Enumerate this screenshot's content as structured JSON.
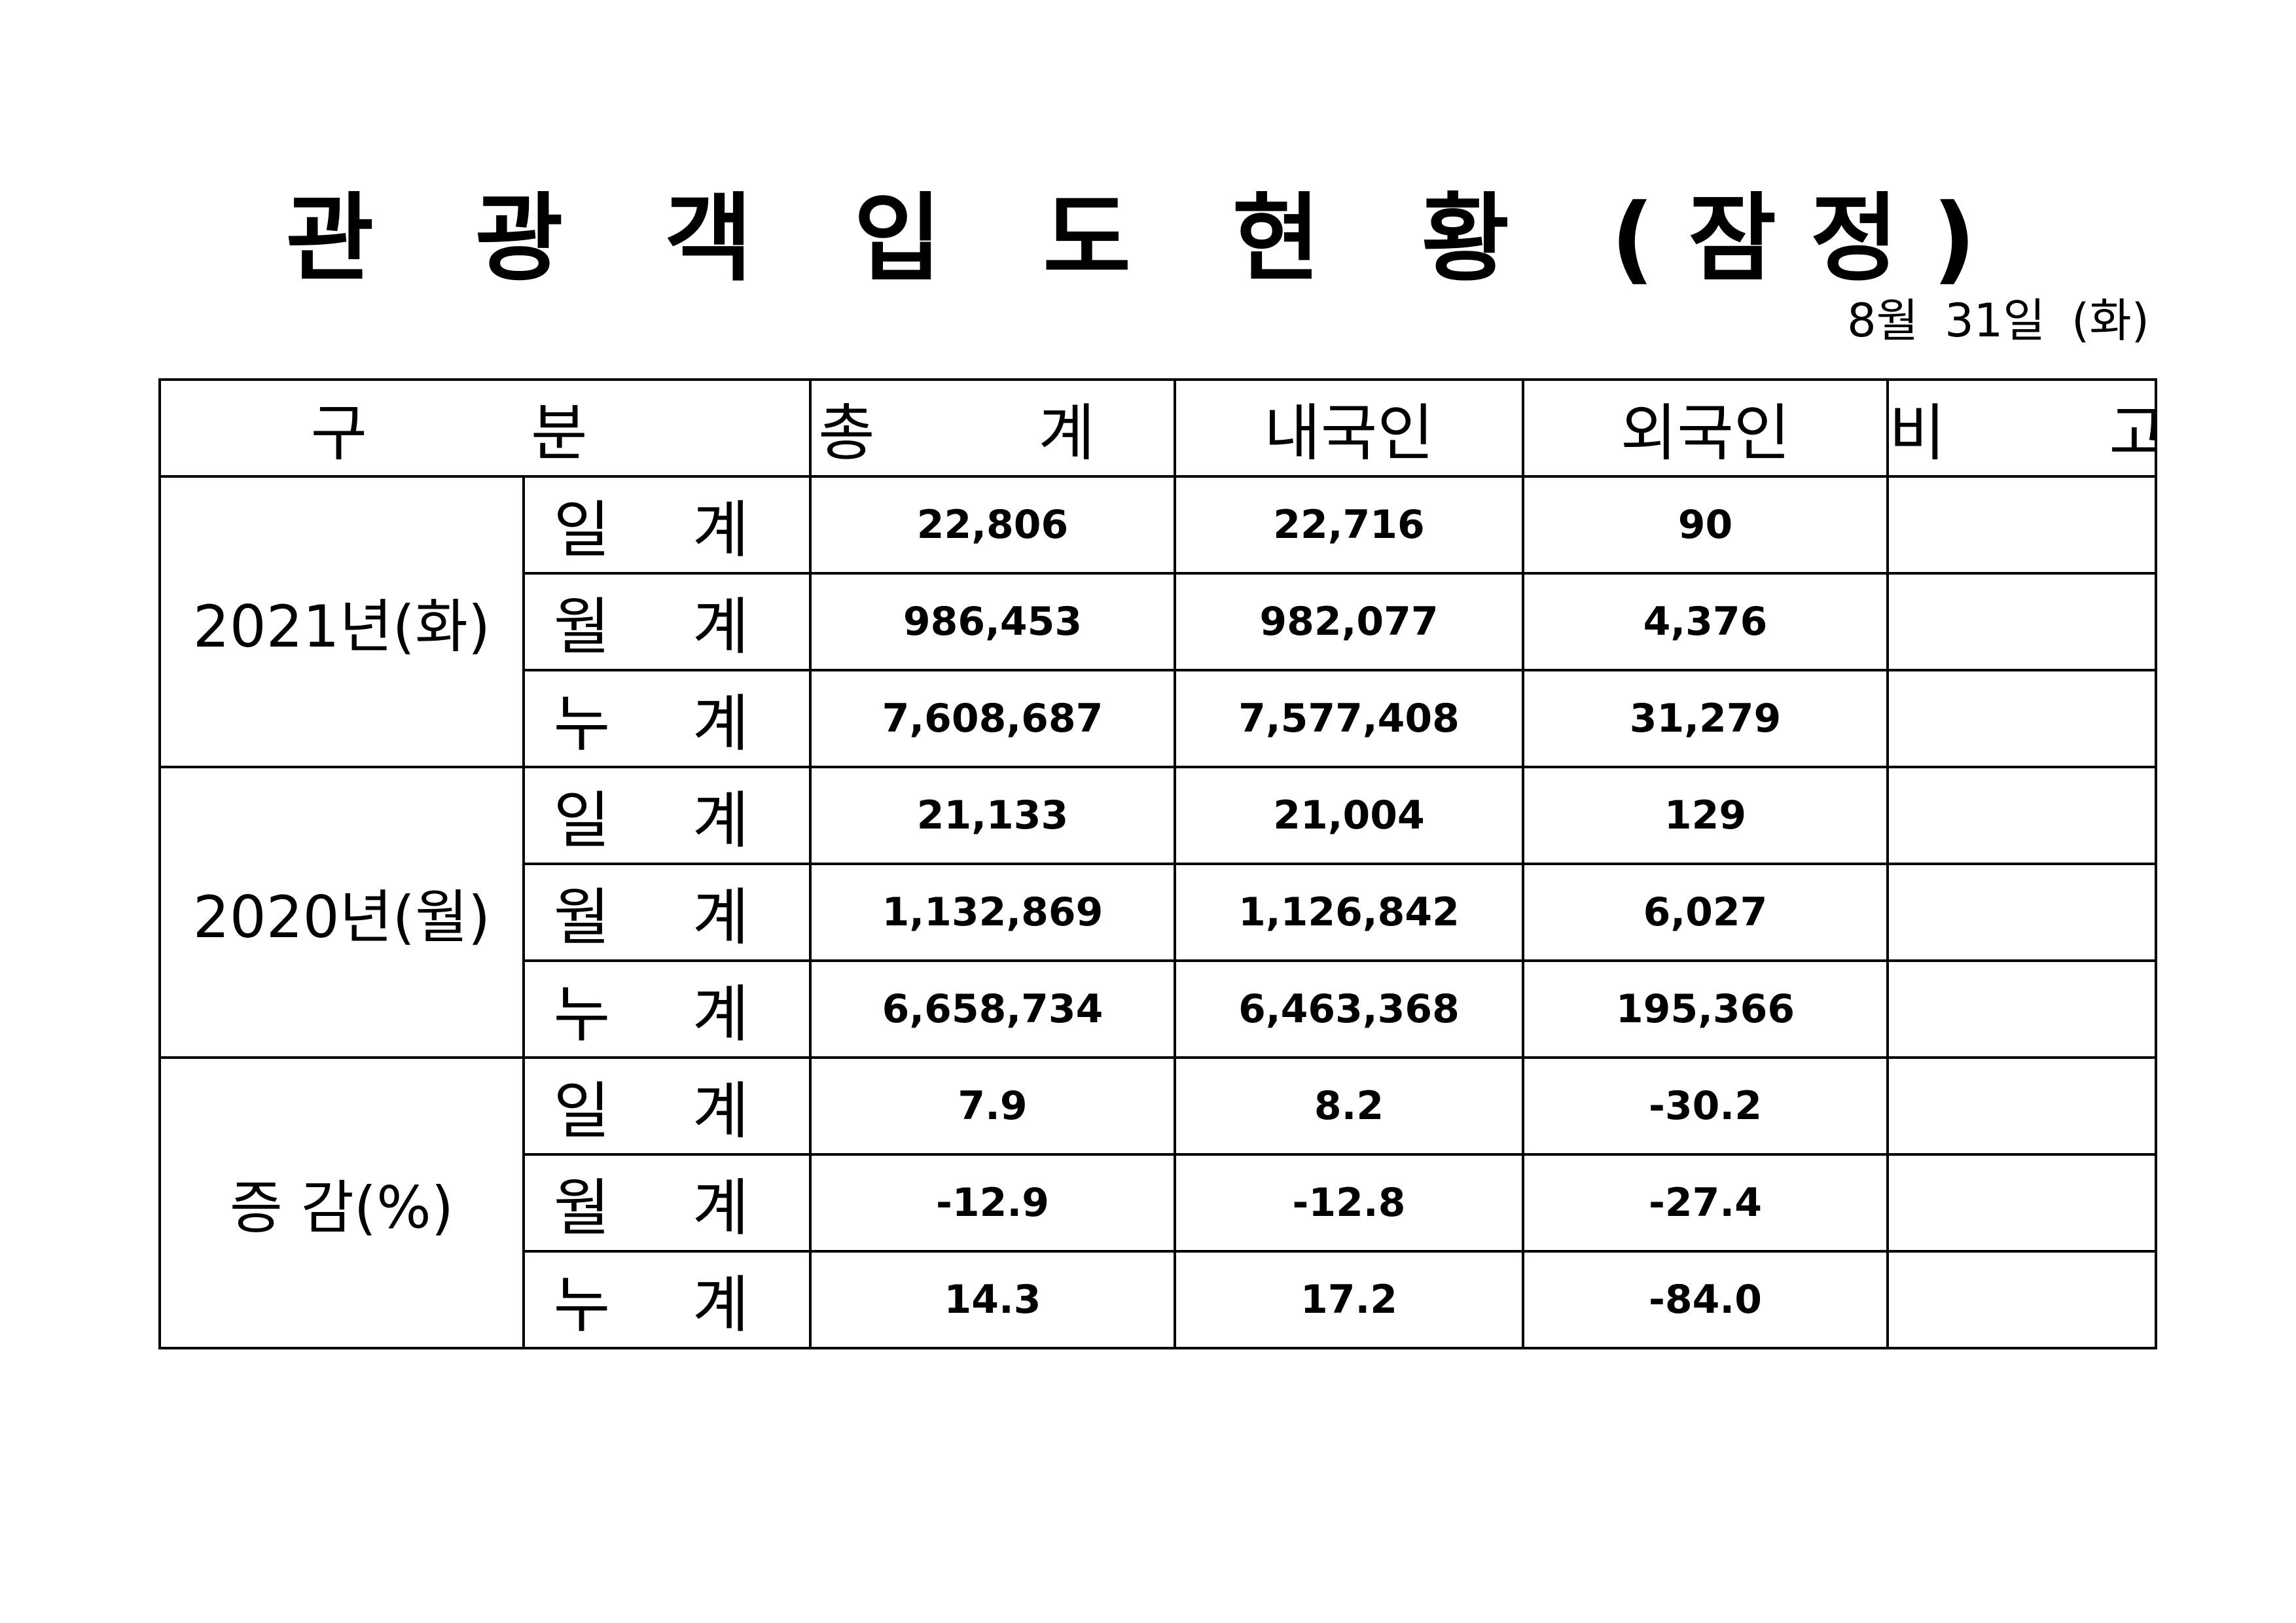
{
  "title": "관 광 객 입 도 현 황 (잠정)",
  "date": "8월 31일 (화)",
  "table": {
    "headers": {
      "category": "구 분",
      "total": "총 계",
      "domestic": "내국인",
      "foreign": "외국인",
      "remarks": "비 고"
    },
    "groups": [
      {
        "label": "2021년(화)",
        "rows": [
          {
            "label": "일 계",
            "total": "22,806",
            "domestic": "22,716",
            "foreign": "90",
            "remarks": ""
          },
          {
            "label": "월 계",
            "total": "986,453",
            "domestic": "982,077",
            "foreign": "4,376",
            "remarks": ""
          },
          {
            "label": "누 계",
            "total": "7,608,687",
            "domestic": "7,577,408",
            "foreign": "31,279",
            "remarks": ""
          }
        ]
      },
      {
        "label": "2020년(월)",
        "rows": [
          {
            "label": "일 계",
            "total": "21,133",
            "domestic": "21,004",
            "foreign": "129",
            "remarks": ""
          },
          {
            "label": "월 계",
            "total": "1,132,869",
            "domestic": "1,126,842",
            "foreign": "6,027",
            "remarks": ""
          },
          {
            "label": "누 계",
            "total": "6,658,734",
            "domestic": "6,463,368",
            "foreign": "195,366",
            "remarks": ""
          }
        ]
      },
      {
        "label": "증 감(%)",
        "rows": [
          {
            "label": "일 계",
            "total": "7.9",
            "domestic": "8.2",
            "foreign": "-30.2",
            "remarks": ""
          },
          {
            "label": "월 계",
            "total": "-12.9",
            "domestic": "-12.8",
            "foreign": "-27.4",
            "remarks": ""
          },
          {
            "label": "누 계",
            "total": "14.3",
            "domestic": "17.2",
            "foreign": "-84.0",
            "remarks": ""
          }
        ]
      }
    ]
  }
}
